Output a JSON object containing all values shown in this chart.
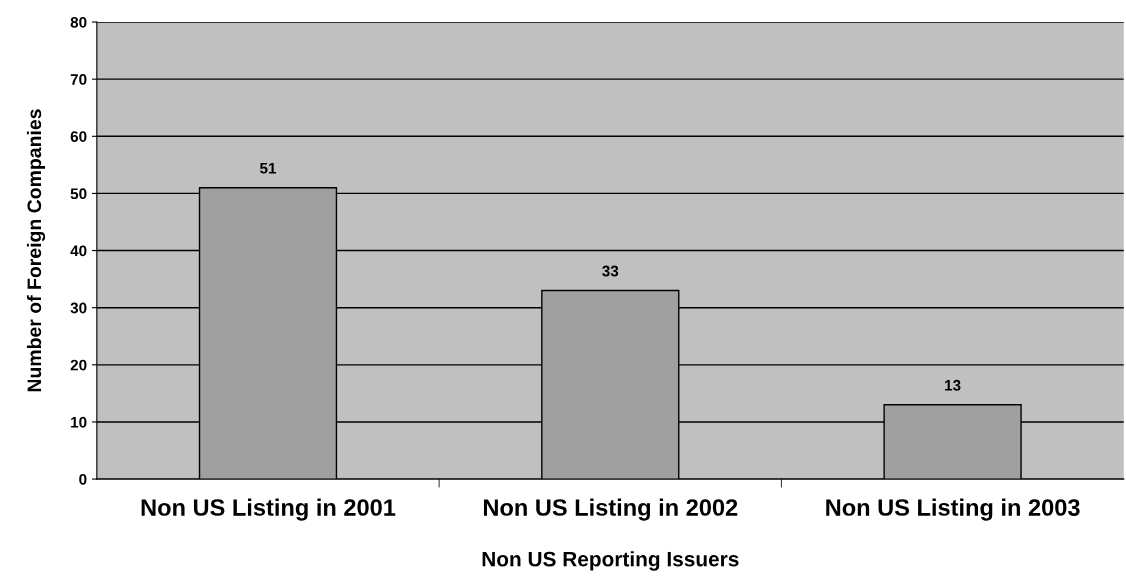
{
  "chart_data": {
    "type": "bar",
    "xlabel": "Non US Reporting Issuers",
    "ylabel": "Number of Foreign Companies",
    "categories": [
      "Non US Listing in 2001",
      "Non US Listing in 2002",
      "Non US Listing in 2003"
    ],
    "values": [
      51,
      33,
      13
    ],
    "color": "#a0a0a0",
    "ylim": [
      0,
      80
    ],
    "yticks": [
      0,
      10,
      20,
      30,
      40,
      50,
      60,
      70,
      80
    ],
    "grid": "y",
    "data_labels": true,
    "legend": false
  }
}
